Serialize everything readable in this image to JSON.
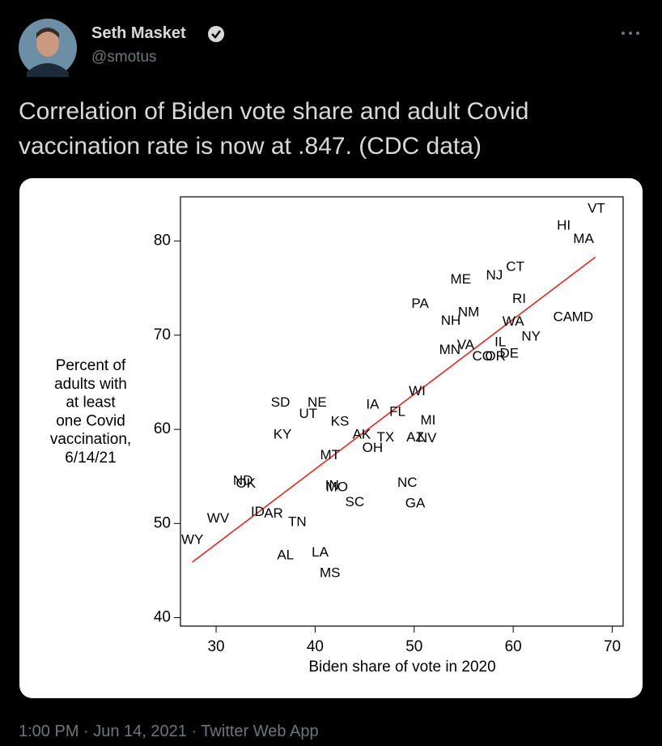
{
  "tweet": {
    "author_name": "Seth Masket",
    "handle": "@smotus",
    "text_lines": [
      "Correlation of Biden vote share and adult Covid",
      "vaccination rate is now at .847. (CDC data)"
    ],
    "footer": "1:00 PM · Jun 14, 2021 · Twitter Web App"
  },
  "chart_data": {
    "type": "scatter",
    "x_label": "Biden share of vote in 2020",
    "y_label_lines": [
      "Percent of",
      "adults with",
      "at least",
      "one Covid",
      "vaccination,",
      "6/14/21"
    ],
    "labels": [
      "VT",
      "HI",
      "MA",
      "CT",
      "NJ",
      "ME",
      "RI",
      "PA",
      "NM",
      "NH",
      "WA",
      "CA",
      "MD",
      "NY",
      "IL",
      "VA",
      "MN",
      "DE",
      "CO",
      "OR",
      "WI",
      "SD",
      "NE",
      "IA",
      "UT",
      "FL",
      "KS",
      "MI",
      "KY",
      "AK",
      "TX",
      "AZ",
      "NV",
      "OH",
      "MT",
      "ND",
      "OK",
      "IN",
      "MO",
      "NC",
      "SC",
      "GA",
      "ID",
      "AR",
      "TN",
      "WV",
      "WY",
      "AL",
      "LA",
      "MS"
    ],
    "x": [
      68.4,
      65.1,
      67.1,
      60.2,
      58.1,
      54.7,
      60.6,
      50.6,
      55.5,
      53.7,
      60.0,
      65.0,
      67.0,
      61.8,
      58.7,
      55.2,
      53.6,
      59.6,
      56.9,
      58.2,
      50.3,
      36.5,
      40.2,
      45.8,
      39.3,
      48.3,
      42.5,
      51.4,
      36.7,
      44.7,
      47.1,
      50.1,
      51.3,
      45.8,
      41.5,
      32.7,
      33.0,
      41.7,
      42.2,
      49.3,
      44.0,
      50.1,
      34.2,
      35.8,
      38.2,
      30.2,
      27.6,
      37.0,
      40.5,
      41.5
    ],
    "values": [
      83.4,
      81.6,
      80.2,
      77.2,
      76.3,
      75.9,
      73.8,
      73.3,
      72.4,
      71.5,
      71.4,
      71.9,
      71.9,
      69.8,
      69.2,
      68.9,
      68.4,
      68.0,
      67.7,
      67.7,
      64.0,
      62.8,
      62.8,
      62.6,
      61.6,
      61.8,
      60.8,
      60.9,
      59.4,
      59.4,
      59.1,
      59.1,
      59.0,
      58.0,
      57.2,
      54.5,
      54.2,
      54.0,
      53.8,
      54.3,
      52.2,
      52.1,
      51.2,
      51.0,
      50.1,
      50.5,
      48.2,
      46.6,
      46.9,
      44.7
    ],
    "fit_line": {
      "x": [
        27.6,
        68.3
      ],
      "y": [
        45.9,
        78.3
      ],
      "color": "#e8241c"
    },
    "xlim": [
      26.4,
      71.1
    ],
    "ylim": [
      39.1,
      84.7
    ],
    "xticks": [
      30,
      40,
      50,
      60,
      70
    ],
    "yticks": [
      40,
      50,
      60,
      70,
      80
    ]
  }
}
